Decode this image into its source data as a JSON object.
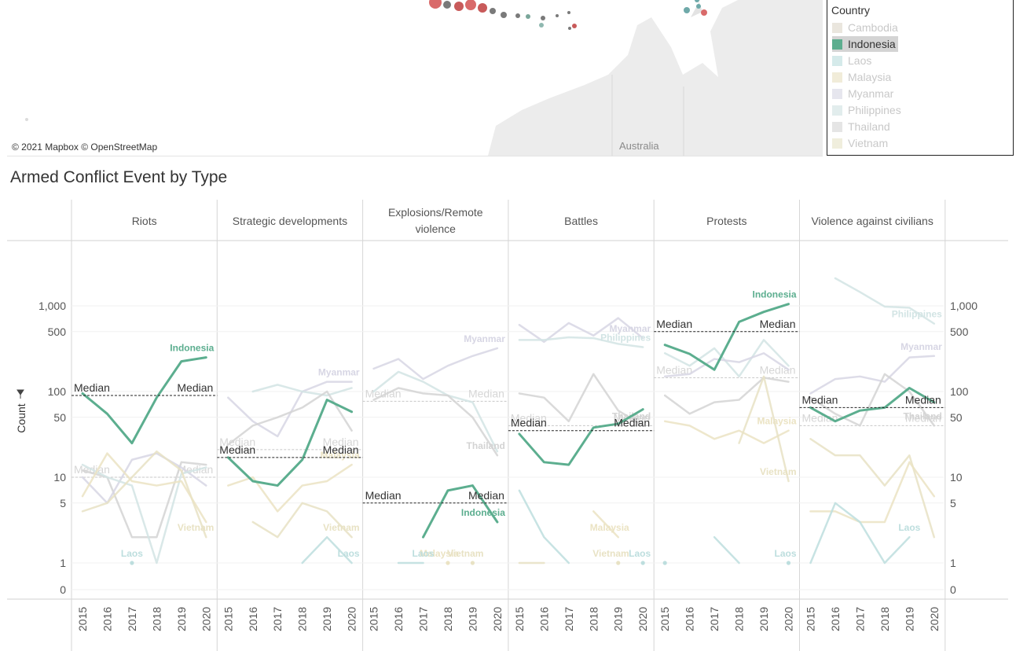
{
  "map": {
    "attribution": "© 2021 Mapbox © OpenStreetMap",
    "place_label": "Australia"
  },
  "legend": {
    "title": "Country",
    "items": [
      {
        "label": "Cambodia",
        "color": "#dcd6c8",
        "selected": false
      },
      {
        "label": "Indonesia",
        "color": "#5cae8f",
        "selected": true
      },
      {
        "label": "Laos",
        "color": "#b9dcdc",
        "selected": false
      },
      {
        "label": "Malaysia",
        "color": "#e8dfbf",
        "selected": false
      },
      {
        "label": "Myanmar",
        "color": "#d6d5e3",
        "selected": false
      },
      {
        "label": "Philippines",
        "color": "#cfe1e1",
        "selected": false
      },
      {
        "label": "Thailand",
        "color": "#d3d3d3",
        "selected": false
      },
      {
        "label": "Vietnam",
        "color": "#e6e2c6",
        "selected": false
      }
    ]
  },
  "sheet_title": "Armed Conflict Event by Type",
  "chart_data": {
    "type": "line",
    "title": "Armed Conflict Event by Type",
    "ylabel": "Count",
    "yscale": "symlog",
    "yticks": [
      "1,000",
      "500",
      "100",
      "50",
      "10",
      "5",
      "1",
      "0"
    ],
    "ytick_values": [
      1000,
      500,
      100,
      50,
      10,
      5,
      1,
      0
    ],
    "years": [
      "2015",
      "2016",
      "2017",
      "2018",
      "2019",
      "2020"
    ],
    "highlight": "Indonesia",
    "colors": {
      "Indonesia": "#5cae8f",
      "Myanmar": "#d7d6e4",
      "Philippines": "#d2e4e4",
      "Thailand": "#d3d3d3",
      "Vietnam": "#e8e2c4",
      "Malaysia": "#ebe3c3",
      "Laos": "#bddede",
      "Cambodia": "#ddd8cb"
    },
    "median_label": "Median",
    "panels": [
      {
        "name": "Riots",
        "median_selected": 90,
        "median_other": 10,
        "series": [
          {
            "country": "Indonesia",
            "values": [
              95,
              55,
              25,
              85,
              225,
              250
            ],
            "label": "Indonesia"
          },
          {
            "country": "Thailand",
            "values": [
              12,
              10,
              2,
              2,
              15,
              14
            ]
          },
          {
            "country": "Myanmar",
            "values": [
              10,
              5,
              16,
              19,
              13,
              8
            ]
          },
          {
            "country": "Philippines",
            "values": [
              14,
              10,
              8,
              1,
              11,
              13
            ]
          },
          {
            "country": "Vietnam",
            "values": [
              4,
              5,
              10,
              20,
              12,
              2
            ],
            "label": "Vietnam"
          },
          {
            "country": "Malaysia",
            "values": [
              6,
              19,
              9,
              8,
              9,
              3
            ]
          },
          {
            "country": "Laos",
            "values": [
              null,
              null,
              1,
              null,
              null,
              null
            ],
            "label": "Laos"
          }
        ]
      },
      {
        "name": "Strategic developments",
        "median_selected": 17,
        "median_other": 21,
        "series": [
          {
            "country": "Indonesia",
            "values": [
              17,
              9,
              8,
              16,
              80,
              58
            ]
          },
          {
            "country": "Myanmar",
            "values": [
              85,
              45,
              30,
              100,
              130,
              130
            ],
            "label": "Myanmar"
          },
          {
            "country": "Philippines",
            "values": [
              null,
              100,
              120,
              100,
              90,
              110
            ]
          },
          {
            "country": "Thailand",
            "values": [
              24,
              40,
              50,
              65,
              100,
              35
            ]
          },
          {
            "country": "Vietnam",
            "values": [
              null,
              3,
              2,
              5,
              4,
              2
            ],
            "label": "Vietnam"
          },
          {
            "country": "Malaysia",
            "values": [
              8,
              10,
              4,
              8,
              9,
              14
            ],
            "label": "Malaysia"
          },
          {
            "country": "Laos",
            "values": [
              null,
              null,
              null,
              1,
              2,
              1
            ],
            "label": "Laos"
          }
        ]
      },
      {
        "name": "Explosions/Remote violence",
        "median_selected": 5,
        "median_other": 77,
        "series": [
          {
            "country": "Indonesia",
            "values": [
              null,
              null,
              2,
              7,
              8,
              3
            ],
            "label": "Indonesia"
          },
          {
            "country": "Myanmar",
            "values": [
              185,
              240,
              140,
              200,
              260,
              320
            ],
            "label": "Myanmar"
          },
          {
            "country": "Philippines",
            "values": [
              100,
              170,
              130,
              90,
              75,
              20
            ]
          },
          {
            "country": "Thailand",
            "values": [
              80,
              110,
              95,
              90,
              50,
              18
            ],
            "label": "Thailand"
          },
          {
            "country": "Malaysia",
            "values": [
              null,
              null,
              null,
              1,
              null,
              null
            ],
            "label": "Malaysia"
          },
          {
            "country": "Vietnam",
            "values": [
              null,
              null,
              null,
              null,
              1,
              null
            ],
            "label": "Vietnam"
          },
          {
            "country": "Laos",
            "values": [
              null,
              1,
              1,
              null,
              null,
              null
            ],
            "label": "Laos"
          }
        ]
      },
      {
        "name": "Battles",
        "median_selected": 35,
        "median_other": 40,
        "series": [
          {
            "country": "Indonesia",
            "values": [
              32,
              15,
              14,
              38,
              42,
              62
            ]
          },
          {
            "country": "Myanmar",
            "values": [
              600,
              380,
              630,
              450,
              720,
              420
            ],
            "label": "Myanmar"
          },
          {
            "country": "Philippines",
            "values": [
              400,
              400,
              430,
              420,
              360,
              330
            ],
            "label": "Philippines"
          },
          {
            "country": "Thailand",
            "values": [
              95,
              85,
              45,
              160,
              60,
              40
            ],
            "label": "Thailand"
          },
          {
            "country": "Laos",
            "values": [
              7,
              2,
              1,
              null,
              null,
              1
            ],
            "label": "Laos"
          },
          {
            "country": "Malaysia",
            "values": [
              null,
              null,
              null,
              4,
              2,
              null
            ],
            "label": "Malaysia"
          },
          {
            "country": "Vietnam",
            "values": [
              1,
              1,
              null,
              null,
              1,
              null
            ],
            "label": "Vietnam"
          },
          {
            "country": "Cambodia",
            "values": [
              null,
              null,
              null,
              null,
              null,
              null
            ],
            "label": "Cambodia"
          }
        ]
      },
      {
        "name": "Protests",
        "median_selected": 500,
        "median_other": 145,
        "series": [
          {
            "country": "Indonesia",
            "values": [
              350,
              275,
              180,
              650,
              850,
              1050
            ],
            "label": "Indonesia"
          },
          {
            "country": "Philippines",
            "values": [
              280,
              200,
              320,
              150,
              400,
              200
            ]
          },
          {
            "country": "Myanmar",
            "values": [
              150,
              160,
              240,
              220,
              280,
              180
            ]
          },
          {
            "country": "Thailand",
            "values": [
              90,
              55,
              75,
              80,
              145,
              130
            ]
          },
          {
            "country": "Malaysia",
            "values": [
              45,
              40,
              28,
              35,
              25,
              35
            ],
            "label": "Malaysia"
          },
          {
            "country": "Vietnam",
            "values": [
              null,
              null,
              null,
              25,
              150,
              9
            ],
            "label": "Vietnam"
          },
          {
            "country": "Laos",
            "values": [
              1,
              null,
              2,
              1,
              null,
              1
            ],
            "label": "Laos"
          }
        ]
      },
      {
        "name": "Violence against civilians",
        "median_selected": 65,
        "median_other": 40,
        "series": [
          {
            "country": "Indonesia",
            "values": [
              65,
              45,
              60,
              65,
              110,
              75
            ]
          },
          {
            "country": "Philippines",
            "values": [
              null,
              2100,
              1450,
              980,
              950,
              620
            ],
            "label": "Philippines"
          },
          {
            "country": "Myanmar",
            "values": [
              95,
              140,
              150,
              130,
              250,
              260
            ],
            "label": "Myanmar"
          },
          {
            "country": "Thailand",
            "values": [
              85,
              55,
              40,
              160,
              100,
              40
            ],
            "label": "Thailand"
          },
          {
            "country": "Vietnam",
            "values": [
              28,
              18,
              18,
              8,
              18,
              2
            ]
          },
          {
            "country": "Malaysia",
            "values": [
              4,
              4,
              3,
              3,
              15,
              6
            ]
          },
          {
            "country": "Laos",
            "values": [
              1,
              5,
              3,
              1,
              2,
              null
            ],
            "label": "Laos"
          }
        ]
      }
    ]
  }
}
